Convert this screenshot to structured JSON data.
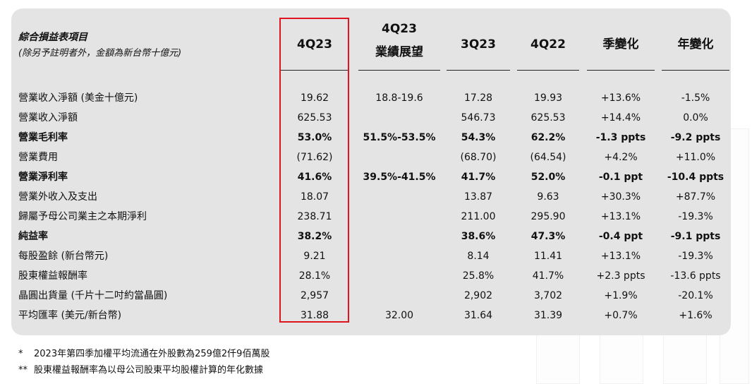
{
  "table": {
    "title": "綜合損益表項目",
    "subtitle": "(除另予註明者外，金額為新台幣十億元)",
    "columns": [
      {
        "line1": "4Q23",
        "line2": ""
      },
      {
        "line1": "4Q23",
        "line2": "業績展望"
      },
      {
        "line1": "3Q23",
        "line2": ""
      },
      {
        "line1": "4Q22",
        "line2": ""
      },
      {
        "line1": "季變化",
        "line2": ""
      },
      {
        "line1": "年變化",
        "line2": ""
      }
    ],
    "rows": [
      {
        "label": "營業收入淨額 (美金十億元)",
        "bold": false,
        "cells": [
          "19.62",
          "18.8-19.6",
          "17.28",
          "19.93",
          "+13.6%",
          "-1.5%"
        ]
      },
      {
        "label": "營業收入淨額",
        "bold": false,
        "cells": [
          "625.53",
          "",
          "546.73",
          "625.53",
          "+14.4%",
          "0.0%"
        ]
      },
      {
        "label": "營業毛利率",
        "bold": true,
        "cells": [
          "53.0%",
          "51.5%-53.5%",
          "54.3%",
          "62.2%",
          "-1.3 ppts",
          "-9.2 ppts"
        ]
      },
      {
        "label": "營業費用",
        "bold": false,
        "cells": [
          "(71.62)",
          "",
          "(68.70)",
          "(64.54)",
          "+4.2%",
          "+11.0%"
        ]
      },
      {
        "label": "營業淨利率",
        "bold": true,
        "cells": [
          "41.6%",
          "39.5%-41.5%",
          "41.7%",
          "52.0%",
          "-0.1 ppt",
          "-10.4 ppts"
        ]
      },
      {
        "label": "營業外收入及支出",
        "bold": false,
        "cells": [
          "18.07",
          "",
          "13.87",
          "9.63",
          "+30.3%",
          "+87.7%"
        ]
      },
      {
        "label": "歸屬予母公司業主之本期淨利",
        "bold": false,
        "cells": [
          "238.71",
          "",
          "211.00",
          "295.90",
          "+13.1%",
          "-19.3%"
        ]
      },
      {
        "label": "純益率",
        "bold": true,
        "cells": [
          "38.2%",
          "",
          "38.6%",
          "47.3%",
          "-0.4 ppt",
          "-9.1 ppts"
        ]
      },
      {
        "label": "每股盈餘 (新台幣元)",
        "bold": false,
        "cells": [
          "9.21",
          "",
          "8.14",
          "11.41",
          "+13.1%",
          "-19.3%"
        ]
      },
      {
        "label": "股東權益報酬率",
        "bold": false,
        "cells": [
          "28.1%",
          "",
          "25.8%",
          "41.7%",
          "+2.3 ppts",
          "-13.6 ppts"
        ]
      },
      {
        "label": "晶圓出貨量 (千片十二吋約當晶圓)",
        "bold": false,
        "cells": [
          "2,957",
          "",
          "2,902",
          "3,702",
          "+1.9%",
          "-20.1%"
        ]
      },
      {
        "label": "平均匯率 (美元/新台幣)",
        "bold": false,
        "cells": [
          "31.88",
          "32.00",
          "31.64",
          "31.39",
          "+0.7%",
          "+1.6%"
        ]
      }
    ]
  },
  "highlight_color": "#e0141e",
  "footnotes": [
    {
      "mark": "*",
      "text": "2023年第四季加權平均流通在外股數為259億2仟9佰萬股"
    },
    {
      "mark": "**",
      "text": "股東權益報酬率為以母公司股東平均股權計算的年化數據"
    }
  ]
}
